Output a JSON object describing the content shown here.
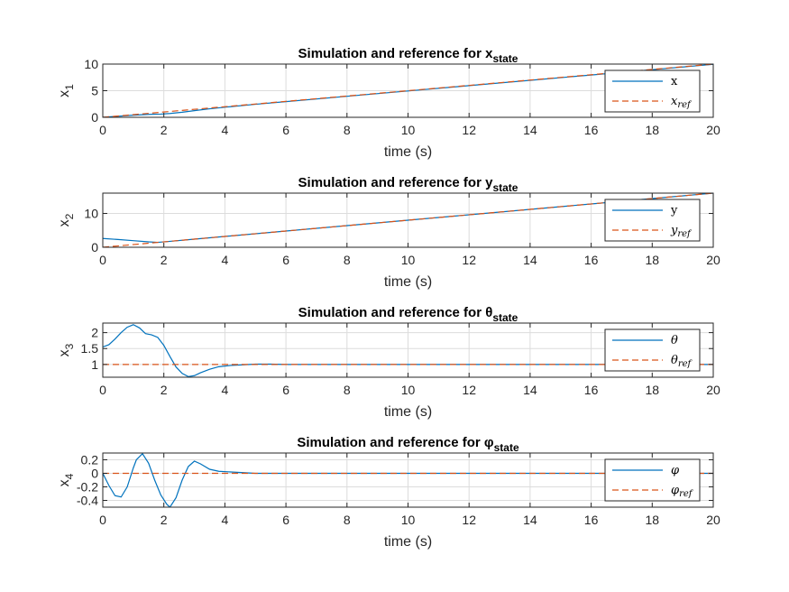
{
  "chart_data": [
    {
      "type": "line",
      "title": "Simulation and reference for x",
      "title_sub": "state",
      "xlabel": "time (s)",
      "ylabel": "x",
      "ylabel_sub": "1",
      "xlim": [
        0,
        20
      ],
      "ylim": [
        0,
        10
      ],
      "xticks": [
        0,
        2,
        4,
        6,
        8,
        10,
        12,
        14,
        16,
        18,
        20
      ],
      "yticks": [
        0,
        5,
        10
      ],
      "grid": true,
      "legend_position": "top-right",
      "series": [
        {
          "name": "x",
          "style": "solid",
          "color": "#0072BD",
          "x": [
            0,
            0.5,
            1.0,
            1.5,
            1.9,
            2.2,
            2.6,
            3.0,
            3.5,
            4.0,
            5,
            6,
            8,
            10,
            12,
            14,
            16,
            18,
            20
          ],
          "y": [
            0.0,
            0.2,
            0.4,
            0.55,
            0.6,
            0.72,
            0.95,
            1.25,
            1.6,
            1.9,
            2.45,
            2.95,
            3.95,
            4.95,
            5.95,
            6.95,
            7.95,
            8.95,
            9.95
          ]
        },
        {
          "name": "x",
          "name_sub": "ref",
          "style": "dashed",
          "color": "#D95319",
          "x": [
            0,
            20
          ],
          "y": [
            0,
            10
          ]
        }
      ]
    },
    {
      "type": "line",
      "title": "Simulation and reference for y",
      "title_sub": "state",
      "xlabel": "time (s)",
      "ylabel": "x",
      "ylabel_sub": "2",
      "xlim": [
        0,
        20
      ],
      "ylim": [
        0,
        16
      ],
      "xticks": [
        0,
        2,
        4,
        6,
        8,
        10,
        12,
        14,
        16,
        18,
        20
      ],
      "yticks": [
        0,
        10
      ],
      "grid": true,
      "legend_position": "top-right",
      "series": [
        {
          "name": "y",
          "style": "solid",
          "color": "#0072BD",
          "x": [
            0,
            0.5,
            1.0,
            1.5,
            1.8,
            2.2,
            3,
            4,
            6,
            8,
            10,
            12,
            14,
            16,
            18,
            20
          ],
          "y": [
            2.6,
            2.3,
            1.95,
            1.6,
            1.45,
            1.75,
            2.4,
            3.2,
            4.8,
            6.4,
            8.0,
            9.6,
            11.2,
            12.8,
            14.4,
            16.0
          ]
        },
        {
          "name": "y",
          "name_sub": "ref",
          "style": "dashed",
          "color": "#D95319",
          "x": [
            0,
            20
          ],
          "y": [
            0,
            16
          ]
        }
      ]
    },
    {
      "type": "line",
      "title": "Simulation and reference for θ",
      "title_sub": "state",
      "xlabel": "time (s)",
      "ylabel": "x",
      "ylabel_sub": "3",
      "xlim": [
        0,
        20
      ],
      "ylim": [
        0.6,
        2.3
      ],
      "xticks": [
        0,
        2,
        4,
        6,
        8,
        10,
        12,
        14,
        16,
        18,
        20
      ],
      "yticks": [
        1,
        1.5,
        2
      ],
      "grid": true,
      "legend_position": "top-right",
      "series": [
        {
          "name": "θ",
          "style": "solid",
          "color": "#0072BD",
          "x": [
            0,
            0.2,
            0.4,
            0.6,
            0.8,
            1.0,
            1.2,
            1.4,
            1.6,
            1.8,
            2.0,
            2.2,
            2.4,
            2.6,
            2.8,
            3.0,
            3.2,
            3.5,
            3.8,
            4.2,
            4.6,
            5.0,
            5.5,
            6,
            20
          ],
          "y": [
            1.55,
            1.62,
            1.8,
            2.0,
            2.17,
            2.25,
            2.15,
            1.97,
            1.93,
            1.85,
            1.6,
            1.25,
            0.92,
            0.72,
            0.62,
            0.65,
            0.74,
            0.85,
            0.93,
            0.97,
            0.99,
            1.01,
            1.01,
            1.0,
            1.0
          ]
        },
        {
          "name": "θ",
          "name_sub": "ref",
          "style": "dashed",
          "color": "#D95319",
          "x": [
            0,
            20
          ],
          "y": [
            1.0,
            1.0
          ]
        }
      ]
    },
    {
      "type": "line",
      "title": "Simulation and reference for φ",
      "title_sub": "state",
      "xlabel": "time (s)",
      "ylabel": "x",
      "ylabel_sub": "4",
      "xlim": [
        0,
        20
      ],
      "ylim": [
        -0.5,
        0.3
      ],
      "xticks": [
        0,
        2,
        4,
        6,
        8,
        10,
        12,
        14,
        16,
        18,
        20
      ],
      "yticks": [
        -0.4,
        -0.2,
        0,
        0.2
      ],
      "grid": true,
      "legend_position": "top-right",
      "series": [
        {
          "name": "φ",
          "style": "solid",
          "color": "#0072BD",
          "x": [
            0,
            0.2,
            0.4,
            0.6,
            0.8,
            1.0,
            1.1,
            1.3,
            1.5,
            1.7,
            1.9,
            2.1,
            2.2,
            2.4,
            2.6,
            2.8,
            3.0,
            3.2,
            3.5,
            3.8,
            4.2,
            4.6,
            5.0,
            6,
            20
          ],
          "y": [
            0.0,
            -0.18,
            -0.33,
            -0.35,
            -0.2,
            0.08,
            0.2,
            0.29,
            0.15,
            -0.1,
            -0.32,
            -0.46,
            -0.5,
            -0.36,
            -0.1,
            0.1,
            0.18,
            0.14,
            0.06,
            0.03,
            0.02,
            0.01,
            0.0,
            0.0,
            0.0
          ]
        },
        {
          "name": "φ",
          "name_sub": "ref",
          "style": "dashed",
          "color": "#D95319",
          "x": [
            0,
            20
          ],
          "y": [
            0.0,
            0.0
          ]
        }
      ]
    }
  ]
}
